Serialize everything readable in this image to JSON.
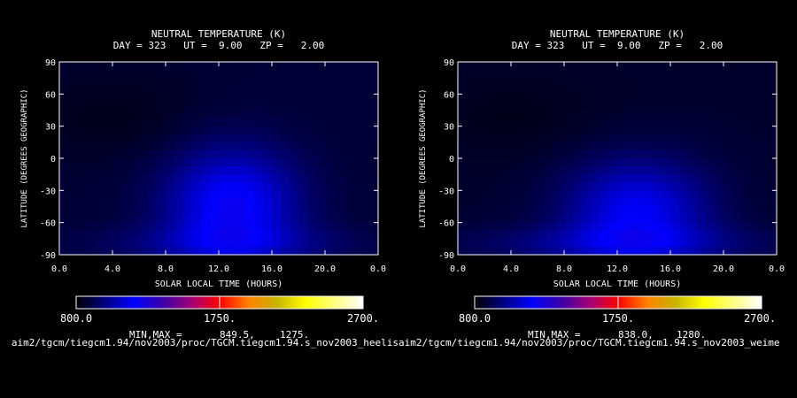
{
  "colors": {
    "background": "#000000",
    "axis": "#ffffff",
    "colormap": [
      "#000000",
      "#000080",
      "#0000ff",
      "#3a00a8",
      "#a0007a",
      "#ff0000",
      "#ff8000",
      "#c8b400",
      "#ffff00",
      "#ffff80",
      "#ffffff"
    ]
  },
  "chart_data": [
    {
      "type": "heatmap",
      "title": "NEUTRAL TEMPERATURE (K)",
      "subtitle": "DAY = 323   UT =  9.00   ZP =   2.00",
      "xlabel": "SOLAR LOCAL TIME (HOURS)",
      "ylabel": "LATITUDE (DEGREES GEOGRAPHIC)",
      "xlim": [
        0,
        24
      ],
      "ylim": [
        -90,
        90
      ],
      "x_ticks": [
        "0.0",
        "4.0",
        "8.0",
        "12.0",
        "16.0",
        "20.0",
        "0.0"
      ],
      "y_ticks": [
        "90",
        "60",
        "30",
        "0",
        "-30",
        "-60",
        "-90"
      ],
      "colorbar": {
        "min": 800,
        "max": 2700,
        "labels": [
          "800.0",
          "1750.",
          "2700."
        ]
      },
      "minmax_label": "MIN,MAX =",
      "min_value": "849.5,",
      "max_value": "1275.",
      "source_path": "aim2/tgcm/tiegcm1.94/nov2003/proc/TGCM.tiegcm1.94.s_nov2003_heelis",
      "field": {
        "base": 880,
        "features": [
          {
            "x": 13.0,
            "y": -45,
            "sx": 3.5,
            "sy": 38,
            "amp": 330
          },
          {
            "x": 12.5,
            "y": -80,
            "sx": 7.0,
            "sy": 12,
            "amp": 110
          },
          {
            "x": 4.0,
            "y": 40,
            "sx": 5.0,
            "sy": 30,
            "amp": -40
          }
        ]
      }
    },
    {
      "type": "heatmap",
      "title": "NEUTRAL TEMPERATURE (K)",
      "subtitle": "DAY = 323   UT =  9.00   ZP =   2.00",
      "xlabel": "SOLAR LOCAL TIME (HOURS)",
      "ylabel": "LATITUDE (DEGREES GEOGRAPHIC)",
      "xlim": [
        0,
        24
      ],
      "ylim": [
        -90,
        90
      ],
      "x_ticks": [
        "0.0",
        "4.0",
        "8.0",
        "12.0",
        "16.0",
        "20.0",
        "0.0"
      ],
      "y_ticks": [
        "90",
        "60",
        "30",
        "0",
        "-30",
        "-60",
        "-90"
      ],
      "colorbar": {
        "min": 800,
        "max": 2700,
        "labels": [
          "800.0",
          "1750.",
          "2700."
        ]
      },
      "minmax_label": "MIN,MAX =",
      "min_value": "838.0,",
      "max_value": "1280.",
      "source_path": "aim2/tgcm/tiegcm1.94/nov2003/proc/TGCM.tiegcm1.94.s_nov2003_weime",
      "field": {
        "base": 870,
        "features": [
          {
            "x": 13.5,
            "y": -50,
            "sx": 3.8,
            "sy": 34,
            "amp": 300
          },
          {
            "x": 12.0,
            "y": -80,
            "sx": 8.0,
            "sy": 12,
            "amp": 140
          },
          {
            "x": 4.0,
            "y": 40,
            "sx": 5.0,
            "sy": 30,
            "amp": -30
          }
        ]
      }
    }
  ]
}
